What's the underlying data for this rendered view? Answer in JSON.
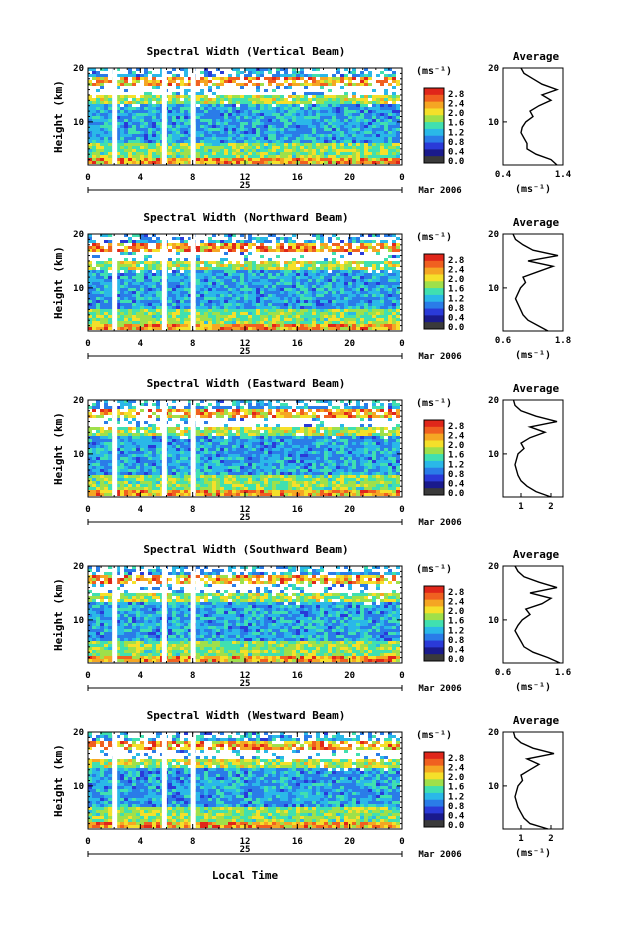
{
  "figure": {
    "x_axis_label": "Local Time",
    "colorbar_label": "(ms⁻¹)",
    "colorbar_ticks": [
      "2.8",
      "2.4",
      "2.0",
      "1.6",
      "1.2",
      "0.8",
      "0.4",
      "0.0"
    ],
    "colorbar_colors": [
      "#e0261a",
      "#f06020",
      "#f5a623",
      "#f5e02a",
      "#9fe04a",
      "#40e0b0",
      "#2ab8e8",
      "#2a7ce8",
      "#2a3ad8",
      "#1a1a8c",
      "#3a3a3a"
    ],
    "date_label": "Mar 2006",
    "day_label": "25"
  },
  "chart_data": [
    {
      "type": "heatmap",
      "title": "Spectral Width (Vertical Beam)",
      "ylabel": "Height (km)",
      "yticks": [
        "20",
        "10"
      ],
      "xticks": [
        "0",
        "4",
        "8",
        "12",
        "16",
        "20",
        "0"
      ],
      "xlim": [
        0,
        24
      ],
      "ylim": [
        2,
        20
      ],
      "data_gaps_hours": [
        2.0,
        5.8,
        8.0
      ],
      "profile": {
        "title": "Average",
        "xlabel": "(ms⁻¹)",
        "xticks": [
          "0.4",
          "1.4"
        ],
        "yticks": [
          "20",
          "10"
        ],
        "xlim": [
          0.4,
          1.4
        ],
        "height_km": [
          2,
          3,
          4,
          5,
          6,
          7,
          8,
          9,
          10,
          11,
          12,
          13,
          14,
          15,
          16,
          17,
          18,
          19,
          20
        ],
        "width": [
          1.3,
          1.2,
          0.95,
          0.8,
          0.8,
          0.75,
          0.7,
          0.72,
          0.78,
          0.9,
          0.85,
          1.0,
          1.2,
          1.05,
          1.3,
          1.05,
          0.9,
          0.75,
          0.7
        ]
      }
    },
    {
      "type": "heatmap",
      "title": "Spectral Width (Northward Beam)",
      "ylabel": "Height (km)",
      "yticks": [
        "20",
        "10"
      ],
      "xticks": [
        "0",
        "4",
        "8",
        "12",
        "16",
        "20",
        "0"
      ],
      "xlim": [
        0,
        24
      ],
      "ylim": [
        2,
        20
      ],
      "data_gaps_hours": [
        2.0,
        5.8,
        8.0
      ],
      "profile": {
        "title": "Average",
        "xlabel": "(ms⁻¹)",
        "xticks": [
          "0.6",
          "1.8"
        ],
        "yticks": [
          "20",
          "10"
        ],
        "xlim": [
          0.6,
          1.8
        ],
        "height_km": [
          2,
          3,
          4,
          5,
          6,
          7,
          8,
          9,
          10,
          11,
          12,
          13,
          14,
          15,
          16,
          17,
          18,
          19,
          20
        ],
        "width": [
          1.5,
          1.3,
          1.1,
          1.0,
          0.95,
          0.9,
          0.85,
          0.9,
          0.95,
          1.05,
          1.0,
          1.3,
          1.6,
          1.1,
          1.7,
          1.2,
          1.0,
          0.85,
          0.8
        ]
      }
    },
    {
      "type": "heatmap",
      "title": "Spectral Width (Eastward Beam)",
      "ylabel": "Height (km)",
      "yticks": [
        "20",
        "10"
      ],
      "xticks": [
        "0",
        "4",
        "8",
        "12",
        "16",
        "20",
        "0"
      ],
      "xlim": [
        0,
        24
      ],
      "ylim": [
        2,
        20
      ],
      "data_gaps_hours": [
        2.0,
        5.8,
        8.0
      ],
      "profile": {
        "title": "Average",
        "xlabel": "",
        "xticks": [
          "1",
          "2"
        ],
        "yticks": [
          "20",
          "10"
        ],
        "xlim": [
          0.4,
          2.4
        ],
        "height_km": [
          2,
          3,
          4,
          5,
          6,
          7,
          8,
          9,
          10,
          11,
          12,
          13,
          14,
          15,
          16,
          17,
          18,
          19,
          20
        ],
        "width": [
          2.0,
          1.5,
          1.2,
          1.0,
          0.9,
          0.85,
          0.8,
          0.85,
          0.9,
          1.1,
          1.0,
          1.3,
          1.8,
          1.3,
          2.2,
          1.5,
          1.0,
          0.8,
          0.75
        ]
      }
    },
    {
      "type": "heatmap",
      "title": "Spectral Width (Southward Beam)",
      "ylabel": "Height (km)",
      "yticks": [
        "20",
        "10"
      ],
      "xticks": [
        "0",
        "4",
        "8",
        "12",
        "16",
        "20",
        "0"
      ],
      "xlim": [
        0,
        24
      ],
      "ylim": [
        2,
        20
      ],
      "data_gaps_hours": [
        2.0,
        5.8,
        8.0
      ],
      "profile": {
        "title": "Average",
        "xlabel": "(ms⁻¹)",
        "xticks": [
          "0.6",
          "1.6"
        ],
        "yticks": [
          "20",
          "10"
        ],
        "xlim": [
          0.6,
          1.6
        ],
        "height_km": [
          2,
          3,
          4,
          5,
          6,
          7,
          8,
          9,
          10,
          11,
          12,
          13,
          14,
          15,
          16,
          17,
          18,
          19,
          20
        ],
        "width": [
          1.55,
          1.35,
          1.1,
          0.95,
          0.9,
          0.85,
          0.8,
          0.85,
          0.92,
          1.05,
          0.98,
          1.25,
          1.4,
          1.05,
          1.5,
          1.2,
          0.95,
          0.85,
          0.8
        ]
      }
    },
    {
      "type": "heatmap",
      "title": "Spectral Width (Westward Beam)",
      "ylabel": "Height (km)",
      "yticks": [
        "20",
        "10"
      ],
      "xticks": [
        "0",
        "4",
        "8",
        "12",
        "16",
        "20",
        "0"
      ],
      "xlim": [
        0,
        24
      ],
      "ylim": [
        2,
        20
      ],
      "data_gaps_hours": [
        2.0,
        5.8,
        8.0
      ],
      "profile": {
        "title": "Average",
        "xlabel": "(ms⁻¹)",
        "xticks": [
          "1",
          "2"
        ],
        "yticks": [
          "20",
          "10"
        ],
        "xlim": [
          0.4,
          2.4
        ],
        "height_km": [
          2,
          3,
          4,
          5,
          6,
          7,
          8,
          9,
          10,
          11,
          12,
          13,
          14,
          15,
          16,
          17,
          18,
          19,
          20
        ],
        "width": [
          1.9,
          1.3,
          1.1,
          1.0,
          0.9,
          0.85,
          0.8,
          0.85,
          0.9,
          1.05,
          1.0,
          1.3,
          1.6,
          1.2,
          2.1,
          1.4,
          1.0,
          0.8,
          0.75
        ]
      }
    }
  ]
}
